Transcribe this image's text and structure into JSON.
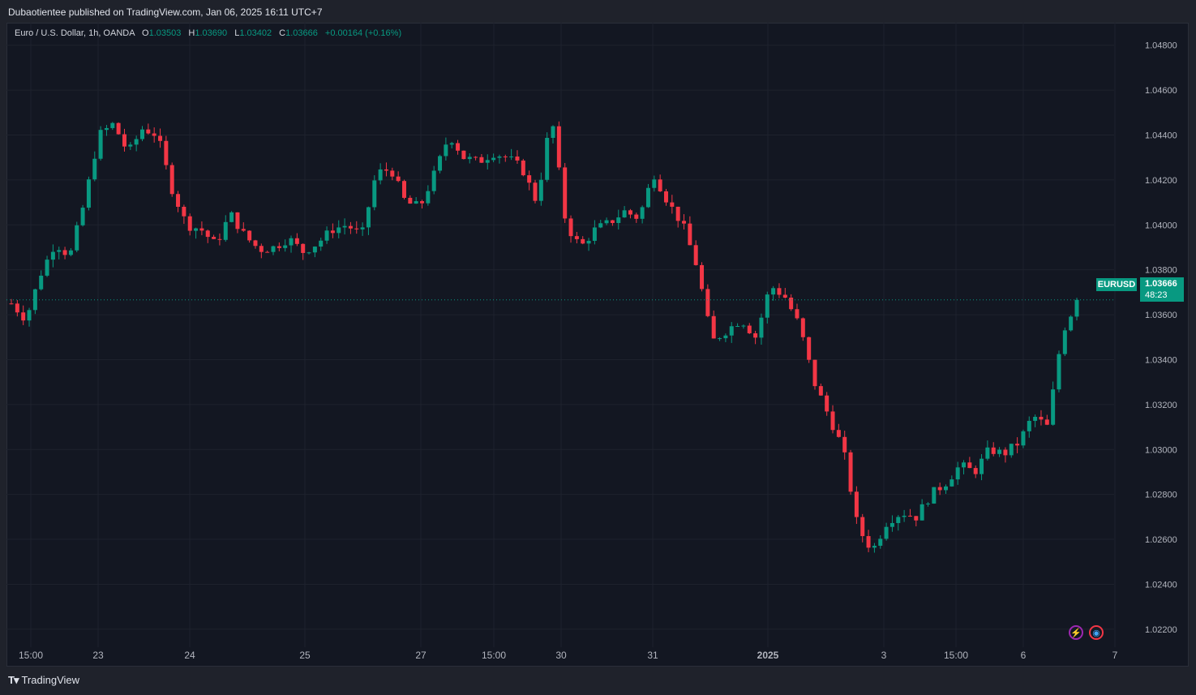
{
  "header": {
    "published": "Dubaotientee published on TradingView.com, Jan 06, 2025 16:11 UTC+7"
  },
  "legend": {
    "symbol": "Euro / U.S. Dollar, 1h, OANDA",
    "open_label": "O",
    "open": "1.03503",
    "high_label": "H",
    "high": "1.03690",
    "low_label": "L",
    "low": "1.03402",
    "close_label": "C",
    "close": "1.03666",
    "change": "+0.00164 (+0.16%)"
  },
  "price_scale": {
    "symbol_tag": "EURUSD",
    "last_price": "1.03666",
    "countdown": "48:23"
  },
  "footer": {
    "brand": "TradingView",
    "logo_icon": "tradingview-logo-icon"
  },
  "icons": {
    "bolt": "bolt-icon",
    "globe": "globe-icon"
  },
  "colors": {
    "up": "#089981",
    "down": "#f23645",
    "background": "#131722",
    "grid": "#1e222d"
  },
  "chart_data": {
    "type": "candlestick",
    "symbol": "EURUSD",
    "timeframe": "1h",
    "ylim": [
      1.0212,
      1.049
    ],
    "y_ticks": [
      "1.04800",
      "1.04600",
      "1.04400",
      "1.04200",
      "1.04000",
      "1.03800",
      "1.03600",
      "1.03400",
      "1.03200",
      "1.03000",
      "1.02800",
      "1.02600",
      "1.02400",
      "1.02200"
    ],
    "x_ticks": [
      "15:00",
      "23",
      "24",
      "25",
      "27",
      "15:00",
      "30",
      "31",
      "2025",
      "3",
      "15:00",
      "6",
      "7"
    ],
    "last_price": 1.03666,
    "anchors_price": [
      1.0365,
      1.0358,
      1.0378,
      1.0392,
      1.0386,
      1.041,
      1.044,
      1.0445,
      1.0432,
      1.0443,
      1.044,
      1.0416,
      1.04,
      1.0398,
      1.0391,
      1.0405,
      1.0395,
      1.0389,
      1.039,
      1.0394,
      1.0388,
      1.0392,
      1.0398,
      1.04,
      1.0395,
      1.0423,
      1.0425,
      1.041,
      1.0408,
      1.0423,
      1.044,
      1.043,
      1.0428,
      1.0432,
      1.043,
      1.0425,
      1.041,
      1.0449,
      1.04,
      1.039,
      1.0398,
      1.0401,
      1.0406,
      1.0403,
      1.0423,
      1.041,
      1.04,
      1.0381,
      1.0348,
      1.0353,
      1.0358,
      1.035,
      1.0373,
      1.0368,
      1.0355,
      1.033,
      1.0315,
      1.03,
      1.0265,
      1.0255,
      1.0268,
      1.0272,
      1.027,
      1.028,
      1.0285,
      1.0293,
      1.029,
      1.03,
      1.0298,
      1.0303,
      1.0315,
      1.031,
      1.0352,
      1.0366
    ],
    "candle_count": 180,
    "volatility": 0.00022,
    "seed": 7
  }
}
